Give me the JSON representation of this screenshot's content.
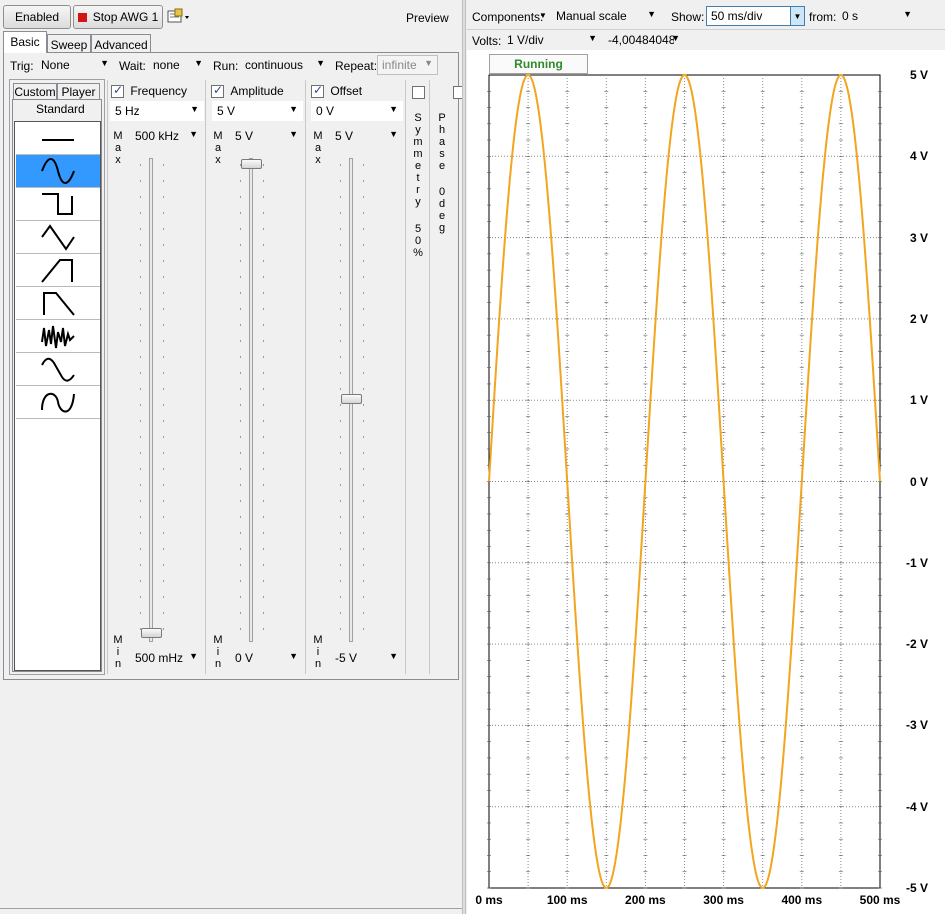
{
  "toolbar": {
    "enabled_label": "Enabled",
    "stop_label": "Stop AWG 1",
    "preview_label": "Preview"
  },
  "tabs": [
    "Basic",
    "Sweep",
    "Advanced"
  ],
  "trigger": {
    "trig_label": "Trig:",
    "trig_value": "None",
    "wait_label": "Wait:",
    "wait_value": "none",
    "run_label": "Run:",
    "run_value": "continuous",
    "repeat_label": "Repeat:",
    "repeat_value": "infinite"
  },
  "wave_tabs": [
    "Custom",
    "Player"
  ],
  "standard_label": "Standard",
  "frequency": {
    "label": "Frequency",
    "checked": true,
    "value": "5 Hz",
    "max_label": "Max",
    "max_value": "500 kHz",
    "min_label": "Min",
    "min_value": "500 mHz"
  },
  "amplitude": {
    "label": "Amplitude",
    "checked": true,
    "value": "5 V",
    "max_label": "Max",
    "max_value": "5 V",
    "min_label": "Min",
    "min_value": "0 V"
  },
  "offset": {
    "label": "Offset",
    "checked": true,
    "value": "0 V",
    "max_label": "Max",
    "max_value": "5 V",
    "min_label": "Min",
    "min_value": "-5 V"
  },
  "symmetry": {
    "label": "Symmetry",
    "value": "50%"
  },
  "phase": {
    "label": "Phase",
    "value": "0deg"
  },
  "scope": {
    "components_label": "Components:",
    "scale_value": "Manual scale",
    "show_label": "Show:",
    "show_value": "50 ms/div",
    "from_label": "from:",
    "from_value": "0 s",
    "volts_label": "Volts:",
    "volts_value": "1 V/div",
    "offset_value": "-4,00484048",
    "status": "Running",
    "status_color": "#2e8b2e",
    "trace_color": "#f2a51f"
  },
  "chart_data": {
    "type": "line",
    "title": "",
    "xlabel": "",
    "ylabel": "",
    "xlim": [
      0,
      500
    ],
    "ylim": [
      -5,
      5
    ],
    "x_ticks": [
      "0 ms",
      "100 ms",
      "200 ms",
      "300 ms",
      "400 ms",
      "500 ms"
    ],
    "y_ticks": [
      "5 V",
      "4 V",
      "3 V",
      "2 V",
      "1 V",
      "0 V",
      "-1 V",
      "-2 V",
      "-3 V",
      "-4 V",
      "-5 V"
    ],
    "grid": true,
    "series": [
      {
        "frequency_hz": 5,
        "amplitude_v": 5,
        "offset_v": 0,
        "waveform": "sine"
      }
    ]
  }
}
